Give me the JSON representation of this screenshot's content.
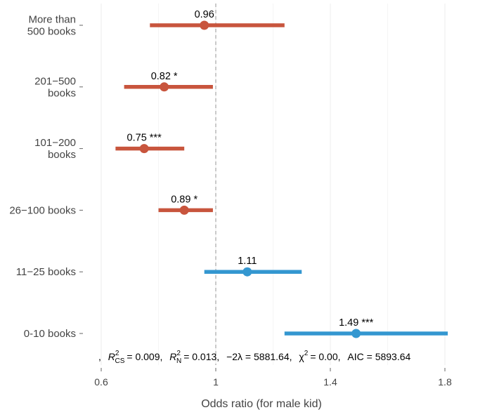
{
  "chart_data": {
    "type": "forest",
    "xlabel": "Odds ratio (for male kid)",
    "x_ticks": [
      {
        "value": 0.6,
        "label": "0.6"
      },
      {
        "value": 1.0,
        "label": "1"
      },
      {
        "value": 1.4,
        "label": "1.4"
      },
      {
        "value": 1.8,
        "label": "1.8"
      }
    ],
    "xlim": [
      0.6,
      1.8
    ],
    "reference_line": 1.0,
    "grid": "vertical",
    "categories": [
      {
        "label_lines": [
          "More than",
          "500 books"
        ],
        "or": 0.96,
        "lo": 0.77,
        "hi": 1.24,
        "label": "0.96",
        "color": "#c8553d"
      },
      {
        "label_lines": [
          "201−500",
          "books"
        ],
        "or": 0.82,
        "lo": 0.68,
        "hi": 0.99,
        "label": "0.82 *",
        "color": "#c8553d"
      },
      {
        "label_lines": [
          "101−200",
          "books"
        ],
        "or": 0.75,
        "lo": 0.65,
        "hi": 0.89,
        "label": "0.75 ***",
        "color": "#c8553d"
      },
      {
        "label_lines": [
          "26−100 books"
        ],
        "or": 0.89,
        "lo": 0.8,
        "hi": 0.99,
        "label": "0.89 *",
        "color": "#c8553d"
      },
      {
        "label_lines": [
          "11−25 books"
        ],
        "or": 1.11,
        "lo": 0.96,
        "hi": 1.3,
        "label": "1.11",
        "color": "#3497d0"
      },
      {
        "label_lines": [
          "0-10 books"
        ],
        "or": 1.49,
        "lo": 1.24,
        "hi": 1.81,
        "label": "1.49 ***",
        "color": "#3497d0"
      }
    ],
    "stats": {
      "prefix": ",",
      "r2cs_sym": "R",
      "r2cs_sub": "CS",
      "r2cs_val": "= 0.009,",
      "r2n_sym": "R",
      "r2n_sub": "N",
      "r2n_val": "= 0.013,",
      "lambda": "−2λ = 5881.64,",
      "chi_sym": "χ",
      "chi_val": "= 0.00,",
      "aic": "AIC = 5893.64",
      "sup": "2"
    }
  }
}
